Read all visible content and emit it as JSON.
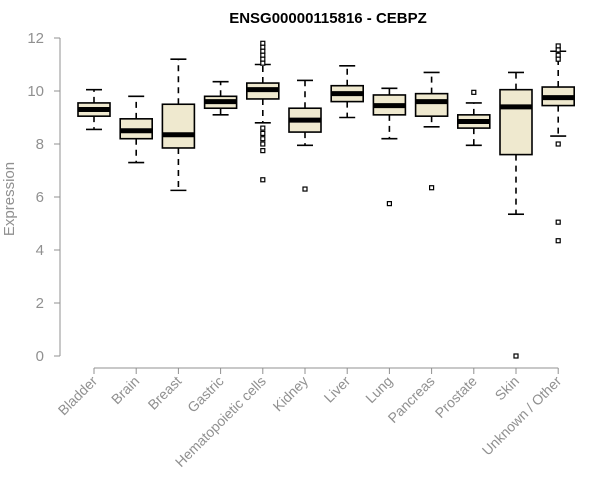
{
  "chart_data": {
    "type": "box",
    "title": "ENSG00000115816 - CEBPZ",
    "ylabel": "Expression",
    "xlabel": "",
    "ylim": [
      0,
      12
    ],
    "yticks": [
      0,
      2,
      4,
      6,
      8,
      10,
      12
    ],
    "categories": [
      "Bladder",
      "Brain",
      "Breast",
      "Gastric",
      "Hematopoietic cells",
      "Kidney",
      "Liver",
      "Lung",
      "Pancreas",
      "Prostate",
      "Skin",
      "Unknown / Other"
    ],
    "boxes": [
      {
        "min": 8.55,
        "q1": 9.05,
        "median": 9.3,
        "q3": 9.55,
        "max": 10.05,
        "outliers": []
      },
      {
        "min": 7.3,
        "q1": 8.2,
        "median": 8.5,
        "q3": 8.95,
        "max": 9.8,
        "outliers": []
      },
      {
        "min": 6.25,
        "q1": 7.85,
        "median": 8.35,
        "q3": 9.5,
        "max": 11.2,
        "outliers": []
      },
      {
        "min": 9.1,
        "q1": 9.35,
        "median": 9.6,
        "q3": 9.8,
        "max": 10.35,
        "outliers": []
      },
      {
        "min": 8.8,
        "q1": 9.7,
        "median": 10.05,
        "q3": 10.3,
        "max": 11.0,
        "outliers": [
          11.8,
          11.65,
          11.5,
          11.35,
          11.2,
          11.05,
          8.6,
          8.4,
          8.2,
          8.0,
          7.75,
          6.65
        ]
      },
      {
        "min": 7.95,
        "q1": 8.45,
        "median": 8.9,
        "q3": 9.35,
        "max": 10.4,
        "outliers": [
          6.3
        ]
      },
      {
        "min": 9.0,
        "q1": 9.6,
        "median": 9.9,
        "q3": 10.2,
        "max": 10.95,
        "outliers": []
      },
      {
        "min": 8.2,
        "q1": 9.1,
        "median": 9.45,
        "q3": 9.85,
        "max": 10.1,
        "outliers": [
          5.75
        ]
      },
      {
        "min": 8.65,
        "q1": 9.05,
        "median": 9.6,
        "q3": 9.9,
        "max": 10.7,
        "outliers": [
          6.35
        ]
      },
      {
        "min": 7.95,
        "q1": 8.6,
        "median": 8.85,
        "q3": 9.1,
        "max": 9.55,
        "outliers": [
          9.95
        ]
      },
      {
        "min": 5.35,
        "q1": 7.6,
        "median": 9.4,
        "q3": 10.05,
        "max": 10.7,
        "outliers": [
          0.0
        ]
      },
      {
        "min": 8.3,
        "q1": 9.45,
        "median": 9.75,
        "q3": 10.15,
        "max": 11.5,
        "outliers": [
          11.7,
          11.55,
          11.35,
          11.2,
          8.0,
          5.05,
          4.35
        ]
      }
    ]
  }
}
